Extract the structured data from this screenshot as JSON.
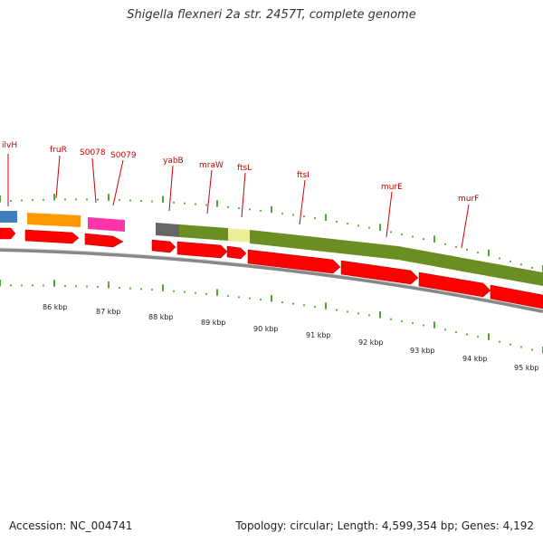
{
  "title": "Shigella flexneri 2a str. 2457T, complete genome",
  "accession": "Accession: NC_004741",
  "summary": "Topology: circular; Length: 4,599,354 bp; Genes: 4,192",
  "colors": {
    "cds": "#ff0000",
    "cds_edge": "#b00000",
    "backbone": "#888888",
    "ticks": "#2a8a00",
    "label_line": "#cc0000",
    "olive": "#6b8e23",
    "orange": "#ff9900",
    "magenta": "#ff33aa",
    "blue": "#3f7fbf",
    "gray": "#666666",
    "yellow": "#eeee99"
  },
  "kbp_labels": [
    "86 kbp",
    "87 kbp",
    "88 kbp",
    "89 kbp",
    "90 kbp",
    "91 kbp",
    "92 kbp",
    "93 kbp",
    "94 kbp",
    "95 kbp"
  ],
  "gene_labels": [
    "ilvH",
    "fruR",
    "S0078",
    "S0079",
    "yabB",
    "mraW",
    "ftsL",
    "ftsI",
    "murE",
    "murF"
  ]
}
